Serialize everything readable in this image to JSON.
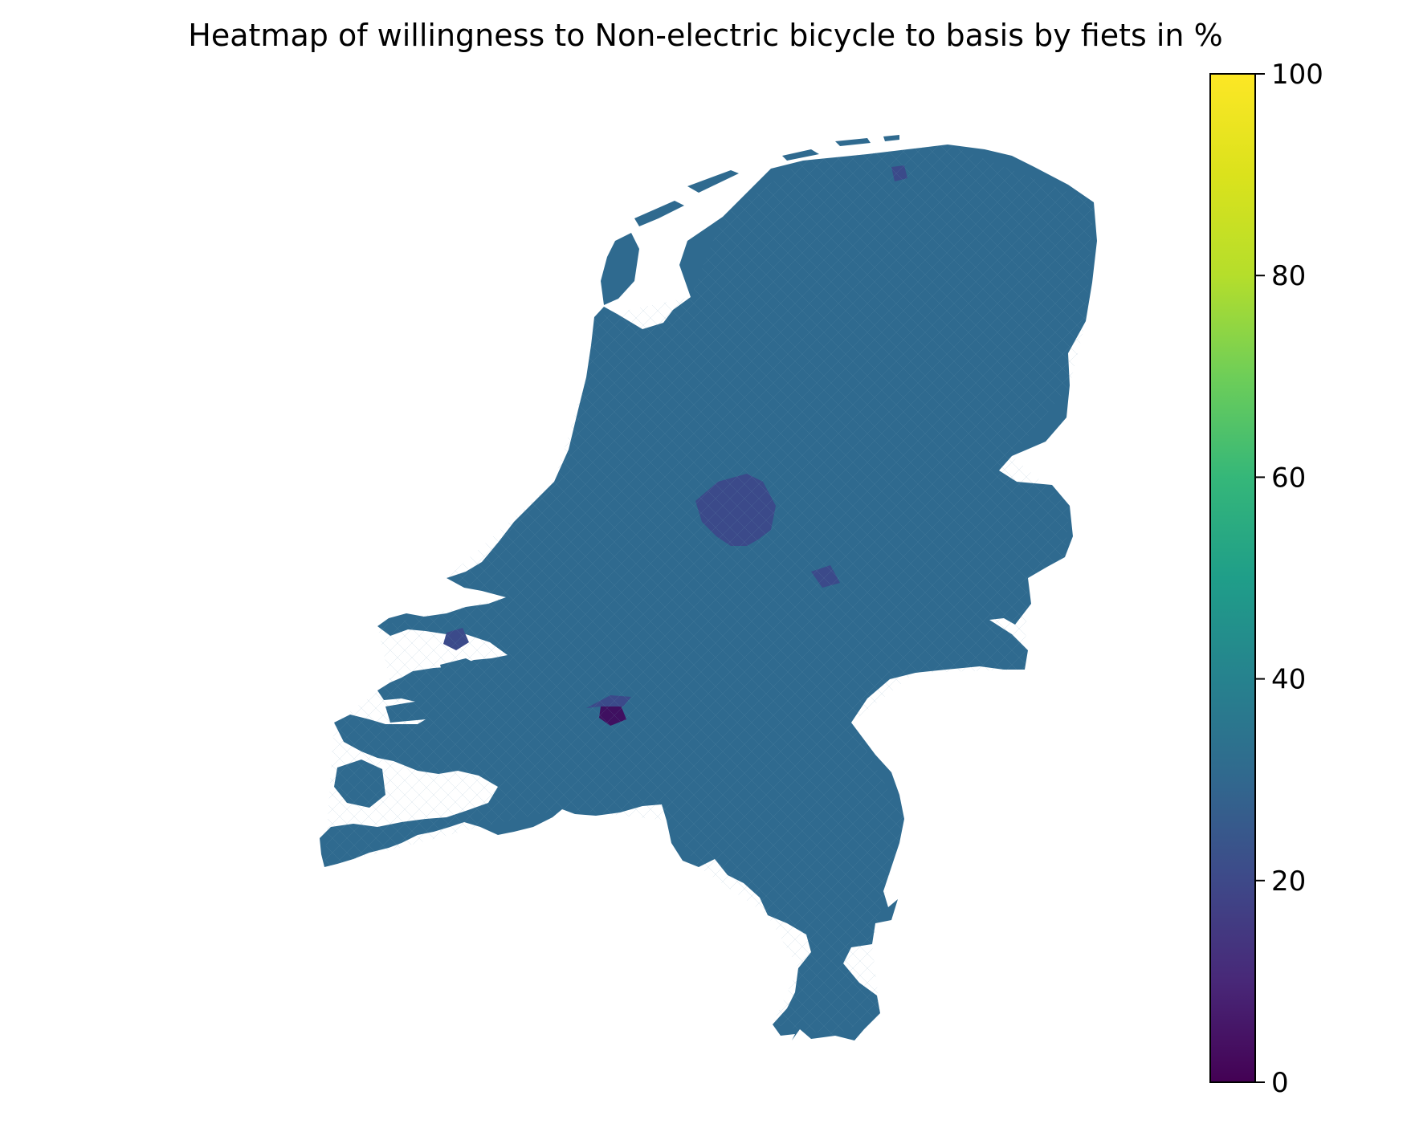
{
  "chart_data": {
    "type": "heatmap",
    "title": "Heatmap of willingness to Non-electric bicycle to basis by fiets in %",
    "colorbar": {
      "min": 0,
      "max": 100,
      "colormap": "viridis",
      "ticks": [
        "0",
        "20",
        "40",
        "60",
        "80",
        "100"
      ]
    },
    "region_values": {
      "typical": 33,
      "flevoland_polders": 24,
      "west_brabant_polder": 5,
      "noord_holland_dark_patch": 22
    }
  },
  "colors": {
    "base_fill": "#2f6a8f",
    "low_fill": "#3b4a8a",
    "very_low_fill": "#3f1060",
    "boundary_line": "#6f9bb8"
  }
}
